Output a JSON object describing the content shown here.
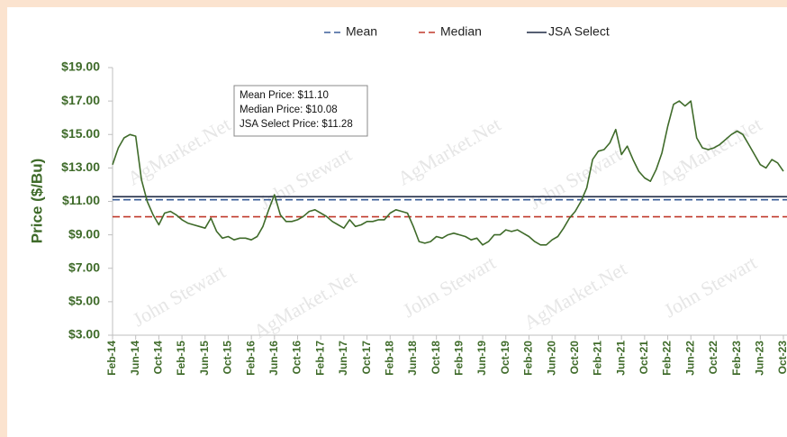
{
  "chart_data": {
    "type": "line",
    "y_label": "Price ($/Bu)",
    "categories": [
      "Feb-14",
      null,
      null,
      null,
      "Jun-14",
      null,
      null,
      null,
      "Oct-14",
      null,
      null,
      null,
      "Feb-15",
      null,
      null,
      null,
      "Jun-15",
      null,
      null,
      null,
      "Oct-15",
      null,
      null,
      null,
      "Feb-16",
      null,
      null,
      null,
      "Jun-16",
      null,
      null,
      null,
      "Oct-16",
      null,
      null,
      null,
      "Feb-17",
      null,
      null,
      null,
      "Jun-17",
      null,
      null,
      null,
      "Oct-17",
      null,
      null,
      null,
      "Feb-18",
      null,
      null,
      null,
      "Jun-18",
      null,
      null,
      null,
      "Oct-18",
      null,
      null,
      null,
      "Feb-19",
      null,
      null,
      null,
      "Jun-19",
      null,
      null,
      null,
      "Oct-19",
      null,
      null,
      null,
      "Feb-20",
      null,
      null,
      null,
      "Jun-20",
      null,
      null,
      null,
      "Oct-20",
      null,
      null,
      null,
      "Feb-21",
      null,
      null,
      null,
      "Jun-21",
      null,
      null,
      null,
      "Oct-21",
      null,
      null,
      null,
      "Feb-22",
      null,
      null,
      null,
      "Jun-22",
      null,
      null,
      null,
      "Oct-22",
      null,
      null,
      null,
      "Feb-23",
      null,
      null,
      null,
      "Jun-23",
      null,
      null,
      null,
      "Oct-23"
    ],
    "series": [
      {
        "color": "#3f6b2a",
        "values": [
          13.2,
          14.2,
          14.8,
          15.0,
          14.9,
          12.3,
          11.0,
          10.2,
          9.6,
          10.3,
          10.4,
          10.2,
          9.9,
          9.7,
          9.6,
          9.5,
          9.4,
          10.0,
          9.2,
          8.8,
          8.9,
          8.7,
          8.8,
          8.8,
          8.7,
          8.9,
          9.5,
          10.5,
          11.4,
          10.2,
          9.8,
          9.8,
          9.9,
          10.1,
          10.4,
          10.5,
          10.3,
          10.1,
          9.8,
          9.6,
          9.4,
          9.9,
          9.5,
          9.6,
          9.8,
          9.8,
          9.9,
          9.9,
          10.3,
          10.5,
          10.4,
          10.3,
          9.5,
          8.6,
          8.5,
          8.6,
          8.9,
          8.8,
          9.0,
          9.1,
          9.0,
          8.9,
          8.7,
          8.8,
          8.4,
          8.6,
          9.0,
          9.0,
          9.3,
          9.2,
          9.3,
          9.1,
          8.9,
          8.6,
          8.4,
          8.4,
          8.7,
          8.9,
          9.4,
          10.0,
          10.4,
          11.0,
          11.8,
          13.5,
          14.0,
          14.1,
          14.5,
          15.3,
          13.8,
          14.3,
          13.5,
          12.8,
          12.4,
          12.2,
          12.9,
          13.9,
          15.5,
          16.8,
          17.0,
          16.7,
          17.0,
          14.8,
          14.2,
          14.1,
          14.2,
          14.4,
          14.7,
          15.0,
          15.2,
          15.0,
          14.4,
          13.8,
          13.2,
          13.0,
          13.5,
          13.3,
          12.8
        ]
      }
    ],
    "reference_lines": [
      {
        "name": "Mean",
        "value": 11.1,
        "color": "#3b5f9a",
        "dashed": true
      },
      {
        "name": "Median",
        "value": 10.08,
        "color": "#c0392b",
        "dashed": true
      },
      {
        "name": "JSA Select",
        "value": 11.28,
        "color": "#1f2a44",
        "dashed": false
      }
    ],
    "annotation": [
      "Mean Price: $11.10",
      "Median Price: $10.08",
      "JSA Select Price: $11.28"
    ],
    "watermark": [
      "AgMarket.Net",
      "John Stewart"
    ],
    "ylim": [
      3,
      19
    ],
    "yticks": [
      {
        "value": 3,
        "label": "$3.00"
      },
      {
        "value": 5,
        "label": "$5.00"
      },
      {
        "value": 7,
        "label": "$7.00"
      },
      {
        "value": 9,
        "label": "$9.00"
      },
      {
        "value": 11,
        "label": "$11.00"
      },
      {
        "value": 13,
        "label": "$13.00"
      },
      {
        "value": 15,
        "label": "$15.00"
      },
      {
        "value": 17,
        "label": "$17.00"
      },
      {
        "value": 19,
        "label": "$19.00"
      }
    ],
    "grid": false,
    "legend": "top"
  }
}
